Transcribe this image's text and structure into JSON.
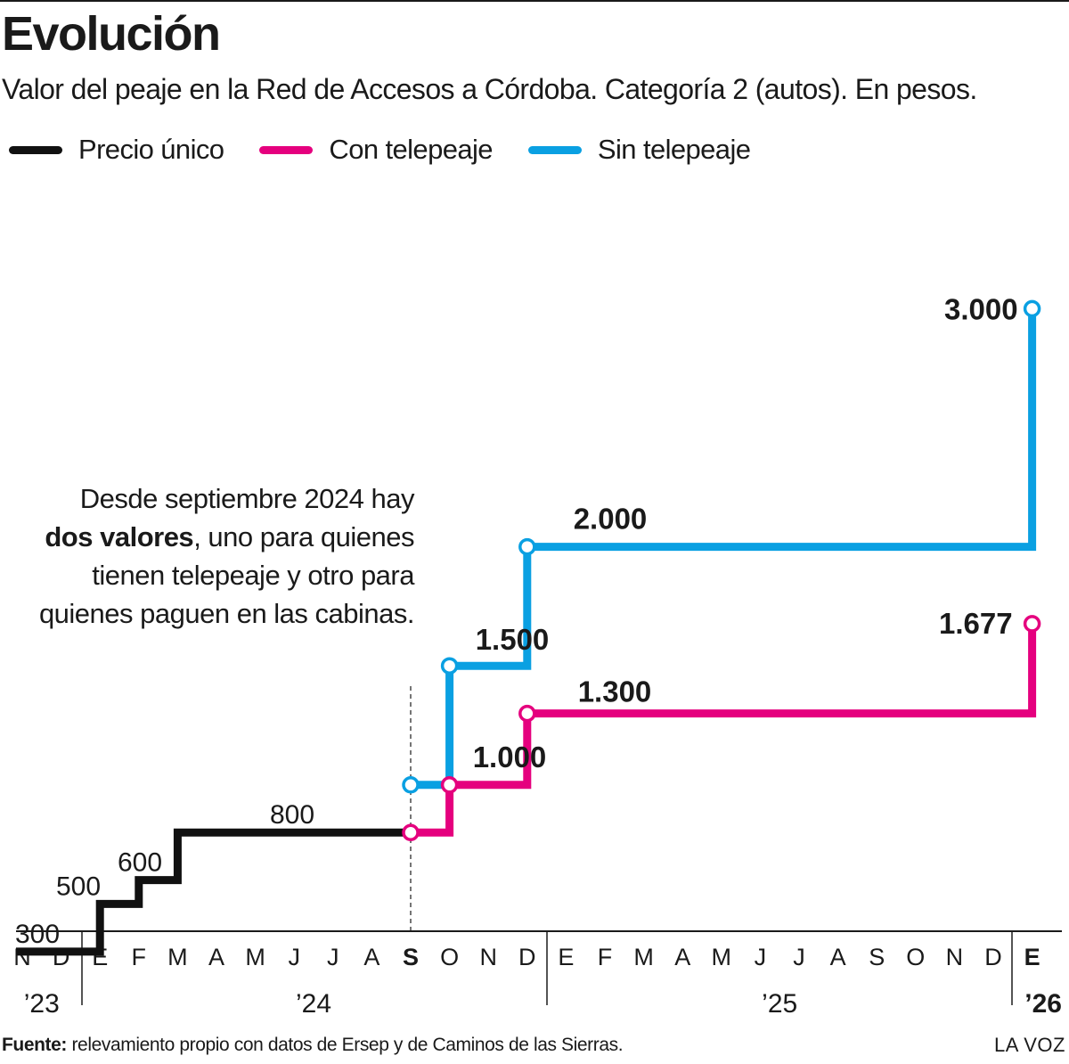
{
  "header": {
    "title": "Evolución",
    "subtitle": "Valor del peaje en la Red de Accesos a Córdoba. Categoría 2 (autos). En pesos."
  },
  "legend": [
    {
      "label": "Precio único",
      "color": "#111111"
    },
    {
      "label": "Con telepeaje",
      "color": "#e5007e"
    },
    {
      "label": "Sin telepeaje",
      "color": "#0aa0e2"
    }
  ],
  "annotation": {
    "line1": "Desde septiembre 2024 hay",
    "bold": "dos valores",
    "rest1": ", uno para quienes",
    "line3": "tienen telepeaje y otro para",
    "line4": "quienes paguen en las cabinas."
  },
  "footer": {
    "source_label": "Fuente:",
    "source_text": " relevamiento propio con datos de Ersep y de Caminos de las Sierras.",
    "brand": "LA VOZ"
  },
  "chart_data": {
    "type": "line",
    "step": true,
    "months": [
      "N",
      "D",
      "E",
      "F",
      "M",
      "A",
      "M",
      "J",
      "J",
      "A",
      "S",
      "O",
      "N",
      "D",
      "E",
      "F",
      "M",
      "A",
      "M",
      "J",
      "J",
      "A",
      "S",
      "O",
      "N",
      "D",
      "E"
    ],
    "month_dates": [
      "2023-11",
      "2023-12",
      "2024-01",
      "2024-02",
      "2024-03",
      "2024-04",
      "2024-05",
      "2024-06",
      "2024-07",
      "2024-08",
      "2024-09",
      "2024-10",
      "2024-11",
      "2024-12",
      "2025-01",
      "2025-02",
      "2025-03",
      "2025-04",
      "2025-05",
      "2025-06",
      "2025-07",
      "2025-08",
      "2025-09",
      "2025-10",
      "2025-11",
      "2025-12",
      "2026-01"
    ],
    "bold_months": [
      "2024-09",
      "2026-01"
    ],
    "years": [
      {
        "label": "’23",
        "start": "2023-11",
        "end": "2023-12"
      },
      {
        "label": "’24",
        "start": "2024-01",
        "end": "2024-12"
      },
      {
        "label": "’25",
        "start": "2025-01",
        "end": "2025-12"
      },
      {
        "label": "’26",
        "start": "2026-01",
        "end": "2026-01",
        "bold": true
      }
    ],
    "ylim": [
      0,
      3000
    ],
    "series": [
      {
        "name": "Precio único",
        "color": "#111111",
        "points": [
          {
            "x": "2023-11",
            "y": 300,
            "label": "300"
          },
          {
            "x": "2024-01",
            "y": 500,
            "label": "500"
          },
          {
            "x": "2024-02",
            "y": 600,
            "label": "600"
          },
          {
            "x": "2024-03",
            "y": 800,
            "label": "800"
          },
          {
            "x": "2024-09",
            "y": 800
          }
        ]
      },
      {
        "name": "Con telepeaje",
        "color": "#e5007e",
        "points": [
          {
            "x": "2024-09",
            "y": 800
          },
          {
            "x": "2024-10",
            "y": 1000,
            "label": "1.000"
          },
          {
            "x": "2024-12",
            "y": 1300,
            "label": "1.300"
          },
          {
            "x": "2026-01",
            "y": 1677,
            "label": "1.677"
          }
        ]
      },
      {
        "name": "Sin telepeaje",
        "color": "#0aa0e2",
        "points": [
          {
            "x": "2024-09",
            "y": 1000
          },
          {
            "x": "2024-10",
            "y": 1500,
            "label": "1.500"
          },
          {
            "x": "2024-12",
            "y": 2000,
            "label": "2.000"
          },
          {
            "x": "2026-01",
            "y": 3000,
            "label": "3.000"
          }
        ]
      }
    ]
  }
}
